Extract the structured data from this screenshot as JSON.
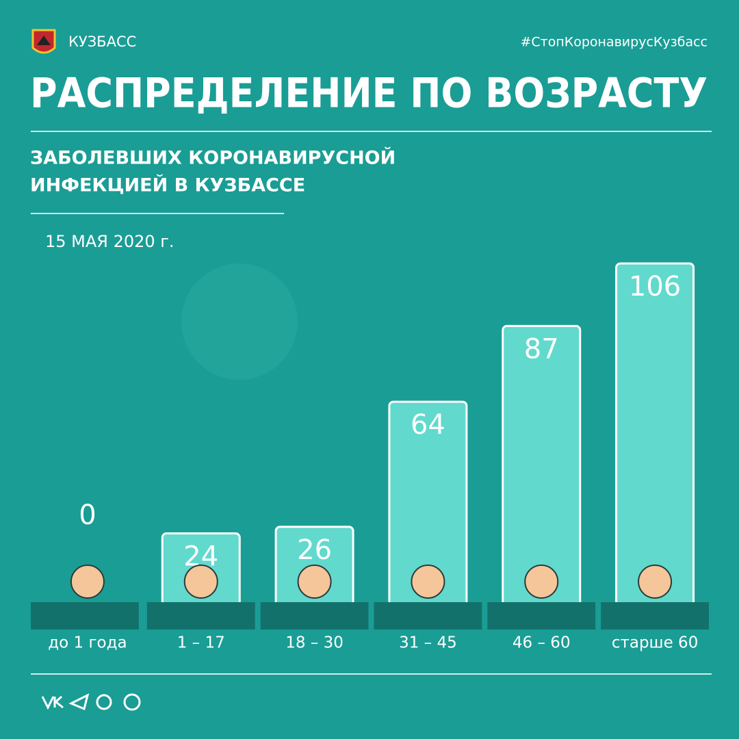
{
  "header": {
    "brand": "КУЗБАСС",
    "hashtag": "#СтопКоронавирусКузбасс"
  },
  "chart_data": {
    "type": "bar",
    "title": "РАСПРЕДЕЛЕНИЕ ПО ВОЗРАСТУ",
    "subtitle": [
      "ЗАБОЛЕВШИХ КОРОНАВИРУСНОЙ",
      "ИНФЕКЦИЕЙ В КУЗБАССЕ"
    ],
    "date": "15 МАЯ 2020 г.",
    "categories": [
      "до 1 года",
      "1 – 17",
      "18 – 30",
      "31 – 45",
      "46 – 60",
      "старше 60"
    ],
    "values": [
      0,
      24,
      26,
      64,
      87,
      106
    ],
    "color": "#62d9cd"
  }
}
